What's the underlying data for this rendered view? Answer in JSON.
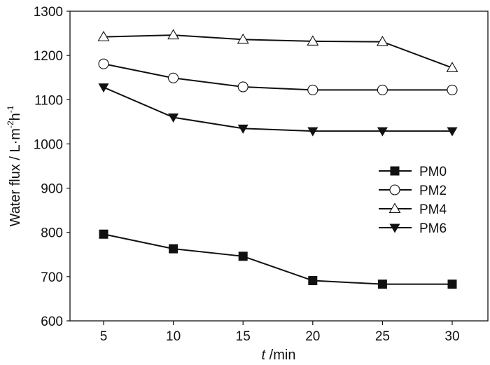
{
  "chart_data": {
    "type": "line",
    "title": "",
    "xlabel_italic": "t",
    "xlabel_rest": " /min",
    "ylabel": "Water flux / L·m",
    "ylabel_sup1": "-2",
    "ylabel_h": "h",
    "ylabel_sup2": "-1",
    "x": [
      5,
      10,
      15,
      20,
      25,
      30
    ],
    "xlim": [
      2.6,
      32.6
    ],
    "ylim": [
      600,
      1300
    ],
    "xticks": [
      "5",
      "10",
      "15",
      "20",
      "25",
      "30"
    ],
    "yticks": [
      "600",
      "700",
      "800",
      "900",
      "1000",
      "1100",
      "1200",
      "1300"
    ],
    "legend_position": "right-middle",
    "series": [
      {
        "name": "PM0",
        "marker": "square-filled",
        "values": [
          796,
          763,
          746,
          691,
          683,
          683
        ]
      },
      {
        "name": "PM2",
        "marker": "circle-open",
        "values": [
          1181,
          1149,
          1129,
          1122,
          1122,
          1122
        ]
      },
      {
        "name": "PM4",
        "marker": "triangle-up-open",
        "values": [
          1242,
          1246,
          1236,
          1232,
          1231,
          1172
        ]
      },
      {
        "name": "PM6",
        "marker": "triangle-down-filled",
        "values": [
          1128,
          1060,
          1035,
          1029,
          1029,
          1029
        ]
      }
    ]
  }
}
